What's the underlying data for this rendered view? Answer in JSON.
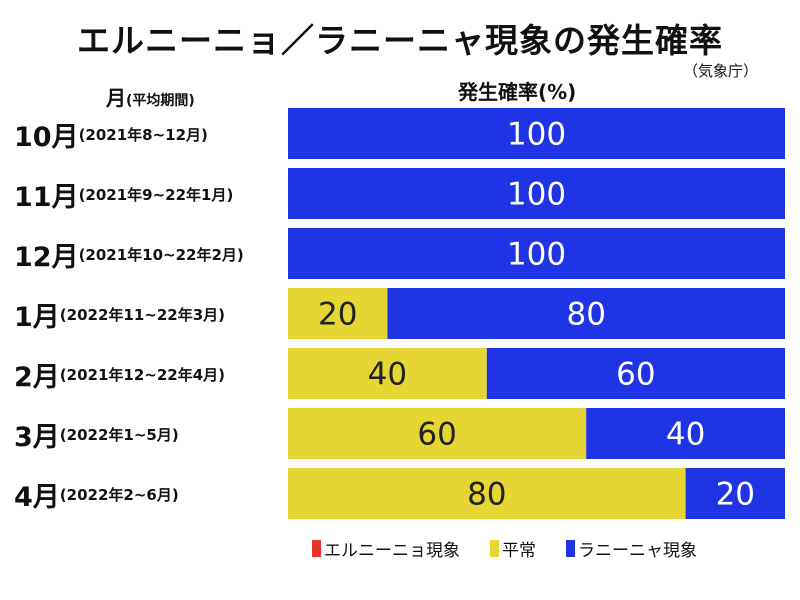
{
  "chart_data": {
    "type": "bar",
    "orientation": "horizontal",
    "stacked": true,
    "title": "エルニーニョ／ラニーニャ現象の発生確率",
    "source": "（気象庁）",
    "xlabel": "発生確率(%)",
    "ylabel_main": "月",
    "ylabel_paren": "(平均期間)",
    "xlim": [
      0,
      100
    ],
    "categories": [
      {
        "month": "10月",
        "period": "(2021年8~12月)"
      },
      {
        "month": "11月",
        "period": "(2021年9~22年1月)"
      },
      {
        "month": "12月",
        "period": "(2021年10~22年2月)"
      },
      {
        "month": "1月",
        "period": "(2022年11~22年3月)"
      },
      {
        "month": "2月",
        "period": "(2021年12~22年4月)"
      },
      {
        "month": "3月",
        "period": "(2022年1~5月)"
      },
      {
        "month": "4月",
        "period": "(2022年2~6月)"
      }
    ],
    "series": [
      {
        "name": "エルニーニョ現象",
        "color": "#e8322e",
        "values": [
          0,
          0,
          0,
          0,
          0,
          0,
          0
        ]
      },
      {
        "name": "平常",
        "color": "#e5d633",
        "values": [
          0,
          0,
          0,
          20,
          40,
          60,
          80
        ]
      },
      {
        "name": "ラニーニャ現象",
        "color": "#1f35e5",
        "values": [
          100,
          100,
          100,
          80,
          60,
          40,
          20
        ]
      }
    ],
    "legend_position": "bottom",
    "grid": false
  }
}
